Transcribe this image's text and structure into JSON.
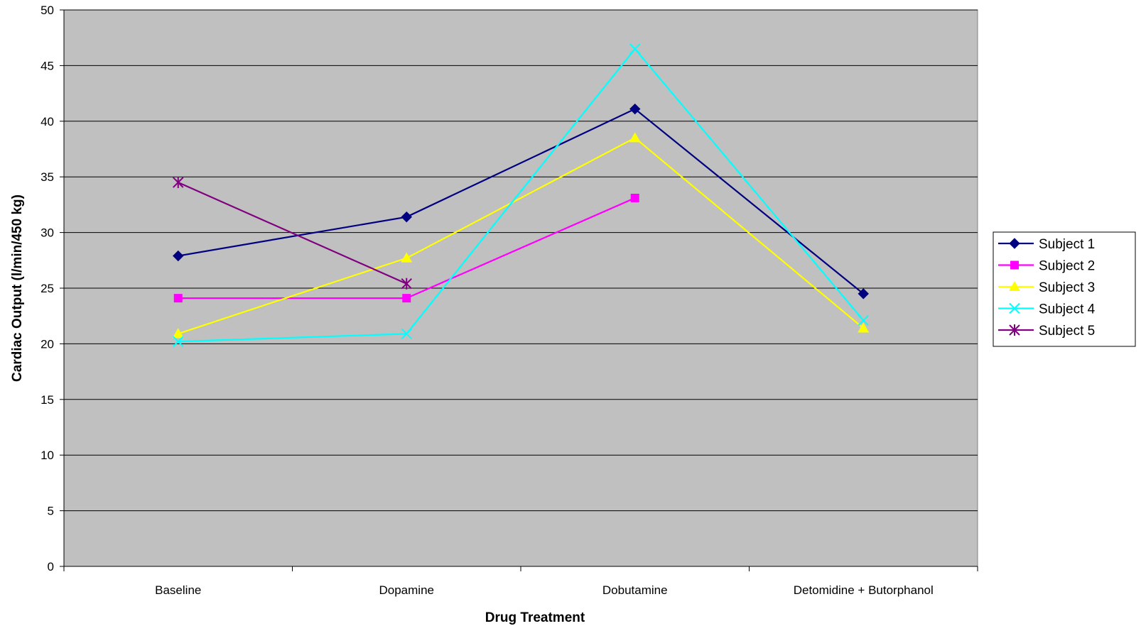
{
  "chart_data": {
    "type": "line",
    "xlabel": "Drug Treatment",
    "ylabel": "Cardiac Output (l/min/450 kg)",
    "categories": [
      "Baseline",
      "Dopamine",
      "Dobutamine",
      "Detomidine + Butorphanol"
    ],
    "ylim": [
      0,
      50
    ],
    "yticks": [
      0,
      5,
      10,
      15,
      20,
      25,
      30,
      35,
      40,
      45,
      50
    ],
    "grid": "horizontal",
    "legend_position": "right",
    "plot_background": "#c0c0c0",
    "series": [
      {
        "name": "Subject 1",
        "marker": "diamond",
        "color": "#000080",
        "values": [
          27.9,
          31.4,
          41.1,
          24.5
        ]
      },
      {
        "name": "Subject 2",
        "marker": "square",
        "color": "#ff00ff",
        "values": [
          24.1,
          24.1,
          33.1,
          null
        ]
      },
      {
        "name": "Subject 3",
        "marker": "triangle",
        "color": "#ffff00",
        "values": [
          20.9,
          27.7,
          38.5,
          21.4
        ]
      },
      {
        "name": "Subject 4",
        "marker": "x",
        "color": "#00ffff",
        "values": [
          20.2,
          20.9,
          46.5,
          22.1
        ]
      },
      {
        "name": "Subject 5",
        "marker": "star",
        "color": "#800080",
        "values": [
          34.5,
          25.4,
          null,
          null
        ]
      }
    ]
  }
}
